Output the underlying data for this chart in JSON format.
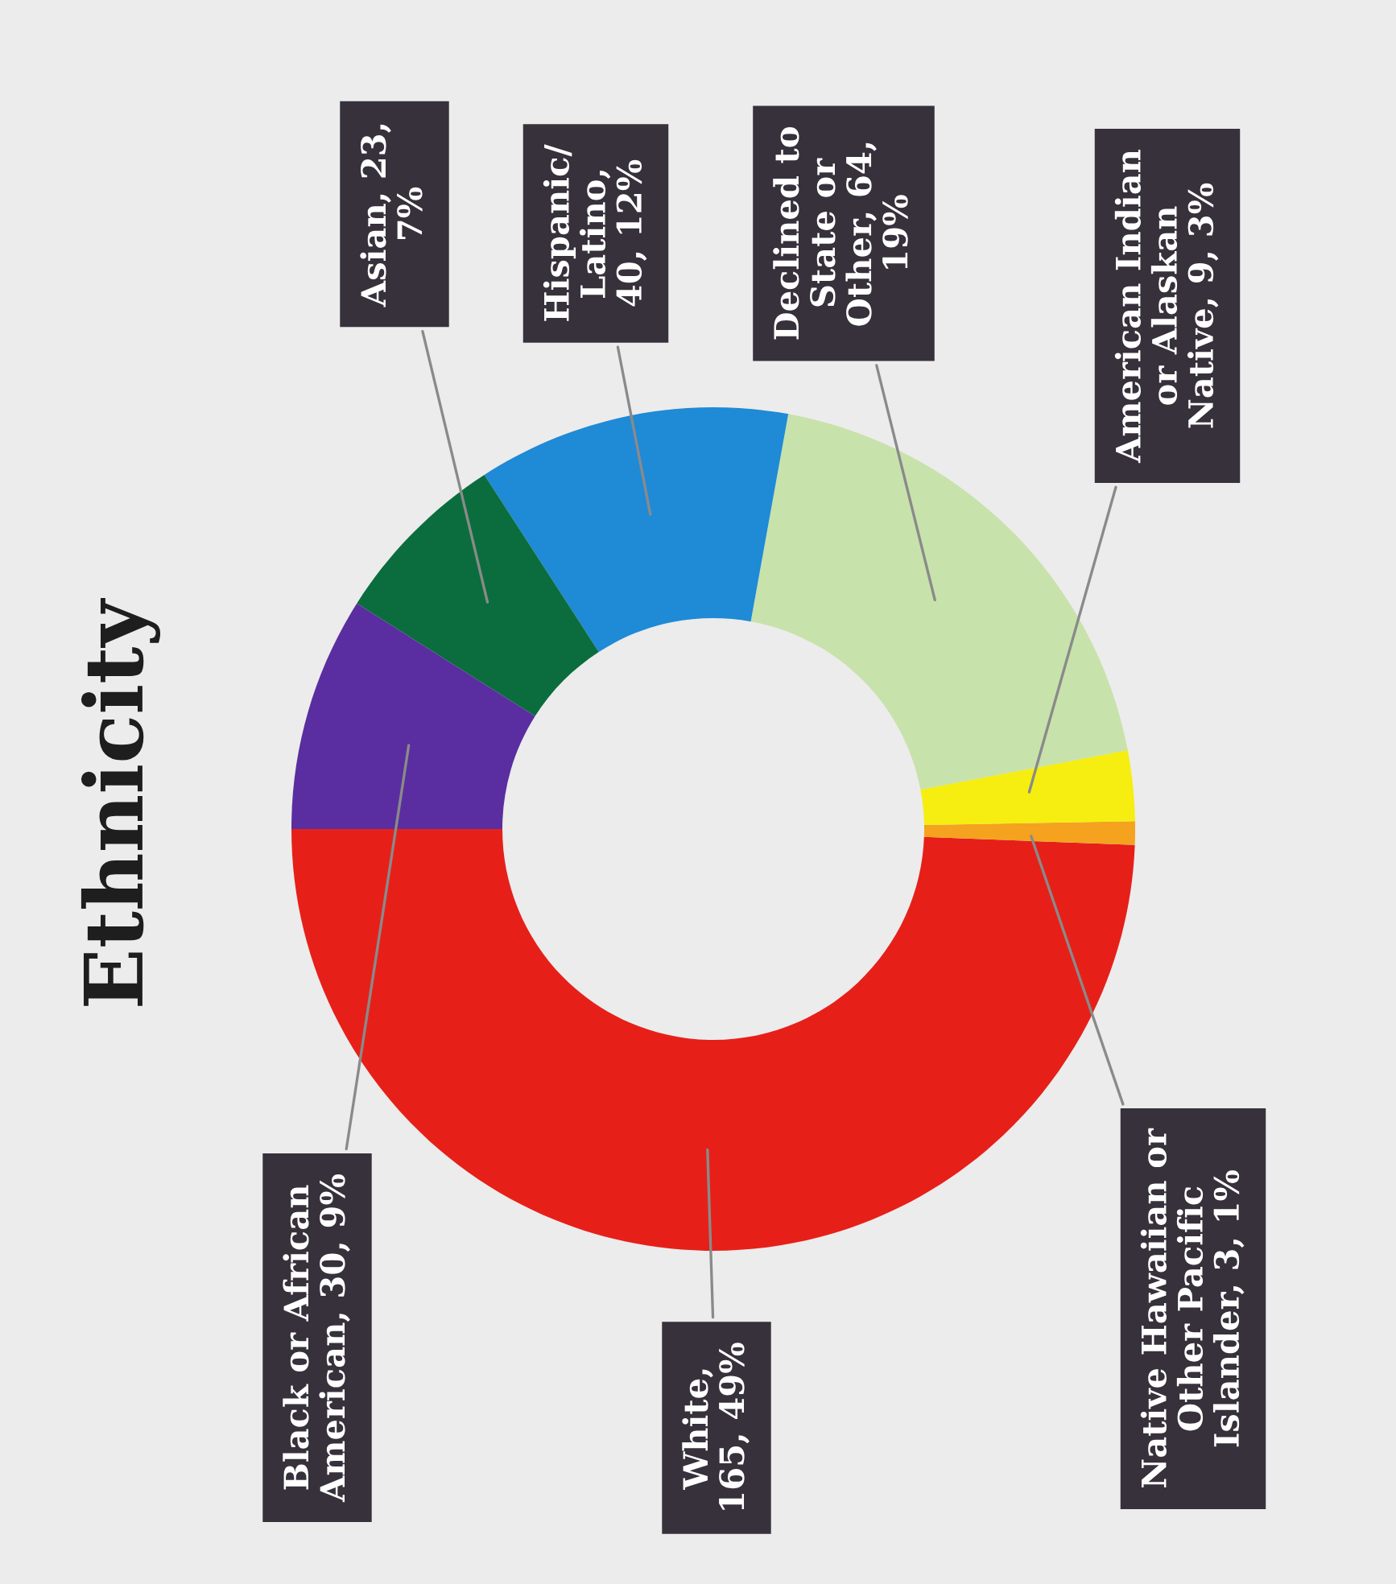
{
  "chart_data": {
    "type": "donut",
    "title": "Ethnicity",
    "categories": [
      "White",
      "Native Hawaiian or Other Pacific Islander",
      "American Indian or Alaskan Native",
      "Declined to State or Other",
      "Hispanic/Latino",
      "Asian",
      "Black or African American"
    ],
    "values": [
      165,
      3,
      9,
      64,
      40,
      23,
      30
    ],
    "value_labels": [
      ", 165, 49%",
      ", 3, 1%",
      ", 9, 3%",
      ", 64, 19%",
      ", 40, 12%",
      ", 23, 7%",
      ", 30, 9%"
    ],
    "colors": [
      "#e62019",
      "#f5a21e",
      "#f6ee10",
      "#c8e2ab",
      "#1f8ad6",
      "#0b6d3d",
      "#5a2ea0"
    ]
  }
}
